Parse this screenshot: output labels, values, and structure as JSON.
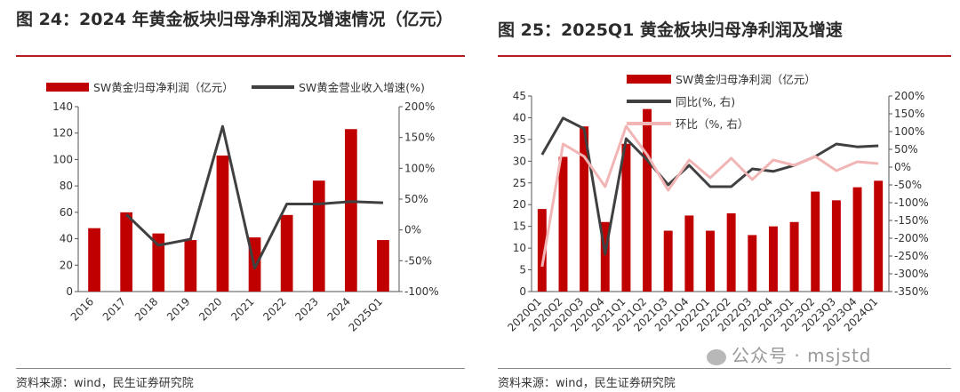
{
  "left": {
    "title": "图 24：2024 年黄金板块归母净利润及增速情况（亿元）",
    "source": "资料来源：wind，民生证券研究院"
  },
  "right": {
    "title": "图 25：2025Q1 黄金板块归母净利润及增速",
    "source": "资料来源：wind，民生证券研究院"
  },
  "watermark": "公众号 · msjstd",
  "colors": {
    "bar": "#c00000",
    "line_dark": "#404040",
    "line_light": "#f2b5b5",
    "title_rule": "#b41e1e"
  },
  "chart_data": [
    {
      "type": "bar",
      "categories": [
        "2016",
        "2017",
        "2018",
        "2019",
        "2020",
        "2021",
        "2022",
        "2023",
        "2024",
        "2025Q1"
      ],
      "series": [
        {
          "name": "SW黄金归母净利润（亿元）",
          "type": "bar",
          "axis": "left",
          "values": [
            48,
            60,
            44,
            39,
            103,
            41,
            58,
            84,
            123,
            39
          ]
        },
        {
          "name": "SW黄金营业收入增速(%)",
          "type": "line",
          "axis": "right",
          "values": [
            null,
            25,
            -25,
            -15,
            168,
            -62,
            42,
            42,
            46,
            44
          ]
        }
      ],
      "ylim": [
        0,
        140
      ],
      "yticks": [
        0,
        20,
        40,
        60,
        80,
        100,
        120,
        140
      ],
      "y2lim": [
        -100,
        200
      ],
      "y2ticks": [
        "-100%",
        "-50%",
        "0%",
        "50%",
        "100%",
        "150%",
        "200%"
      ],
      "legend": "top"
    },
    {
      "type": "bar",
      "categories": [
        "2020Q1",
        "2020Q2",
        "2020Q3",
        "2020Q4",
        "2021Q1",
        "2021Q2",
        "2021Q3",
        "2021Q4",
        "2022Q1",
        "2022Q2",
        "2022Q3",
        "2022Q4",
        "2023Q1",
        "2023Q2",
        "2023Q3",
        "2023Q4",
        "2024Q1"
      ],
      "series": [
        {
          "name": "SW黄金归母净利润（亿元）",
          "type": "bar",
          "axis": "left",
          "values": [
            19,
            31,
            38,
            16,
            34,
            42,
            14,
            17.5,
            14,
            18,
            13,
            15,
            16,
            23,
            21,
            24,
            25.5
          ]
        },
        {
          "name": "同比(%, 右)",
          "type": "line",
          "axis": "right",
          "values": [
            35,
            138,
            108,
            -245,
            80,
            20,
            -50,
            5,
            -55,
            -55,
            -5,
            -12,
            5,
            30,
            65,
            57,
            60
          ]
        },
        {
          "name": "环比（%, 右）",
          "type": "line",
          "axis": "right",
          "values": [
            -280,
            65,
            30,
            -55,
            115,
            35,
            -65,
            20,
            -30,
            25,
            -35,
            20,
            5,
            30,
            -10,
            15,
            10
          ]
        }
      ],
      "ylim": [
        0,
        45
      ],
      "yticks": [
        0,
        5,
        10,
        15,
        20,
        25,
        30,
        35,
        40,
        45
      ],
      "y2lim": [
        -350,
        200
      ],
      "y2ticks": [
        "-350%",
        "-300%",
        "-250%",
        "-200%",
        "-150%",
        "-100%",
        "-50%",
        "0%",
        "50%",
        "100%",
        "150%",
        "200%"
      ],
      "legend": "top"
    }
  ]
}
